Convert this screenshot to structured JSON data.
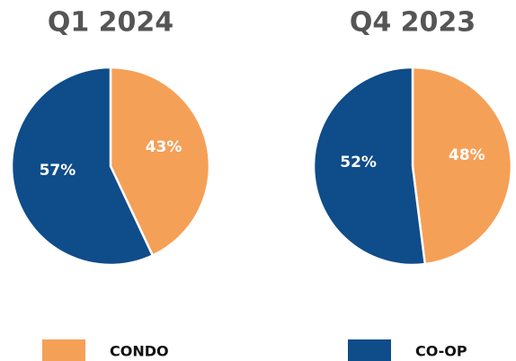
{
  "chart_data": [
    {
      "type": "pie",
      "title": "Q1 2024",
      "categories": [
        "CONDO",
        "CO-OP"
      ],
      "values": [
        43,
        57
      ],
      "value_labels": [
        "43%",
        "57%"
      ],
      "colors": [
        "#f5a057",
        "#0f4c8a"
      ]
    },
    {
      "type": "pie",
      "title": "Q4 2023",
      "categories": [
        "CONDO",
        "CO-OP"
      ],
      "values": [
        48,
        52
      ],
      "value_labels": [
        "48%",
        "52%"
      ],
      "colors": [
        "#f5a057",
        "#0f4c8a"
      ]
    }
  ]
}
